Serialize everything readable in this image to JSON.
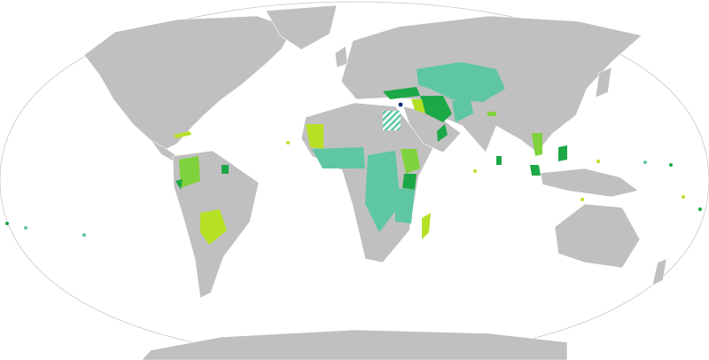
{
  "map": {
    "colors": {
      "land": "#c0c0c0",
      "ocean": "#ffffff",
      "outline": "#c8c8c8",
      "category_teal": "#5ec7a1",
      "category_green": "#1ca846",
      "category_lime": "#b6e024",
      "category_light_green": "#7fd23c",
      "category_navy": "#0a2a6e"
    }
  }
}
